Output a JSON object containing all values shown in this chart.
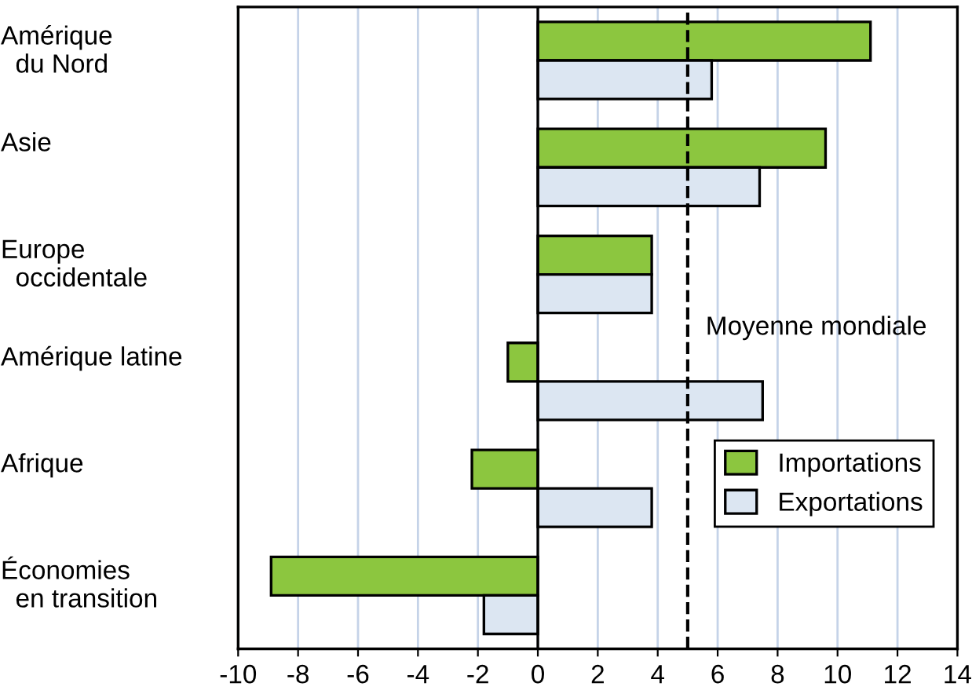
{
  "chart_data": {
    "type": "bar",
    "orientation": "horizontal",
    "categories": [
      "Amérique\n  du Nord",
      "Asie",
      "Europe\n  occidentale",
      "Amérique latine",
      "Afrique",
      "Économies\n  en transition"
    ],
    "series": [
      {
        "name": "Importations",
        "color": "#8cc63f",
        "values": [
          11.1,
          9.6,
          3.8,
          -1.0,
          -2.2,
          -8.9
        ]
      },
      {
        "name": "Exportations",
        "color": "#dce6f2",
        "values": [
          5.8,
          7.4,
          3.8,
          7.5,
          3.8,
          -1.8
        ]
      }
    ],
    "xlim": [
      -10,
      14
    ],
    "xticks": [
      -10,
      -8,
      -6,
      -4,
      -2,
      0,
      2,
      4,
      6,
      8,
      10,
      12,
      14
    ],
    "grid": "x",
    "legend": "bottom right",
    "ref_lines": [
      {
        "axis": "x",
        "value": 5,
        "label": "Moyenne mondiale",
        "line_style": "dashed",
        "color": "#000000"
      }
    ]
  }
}
